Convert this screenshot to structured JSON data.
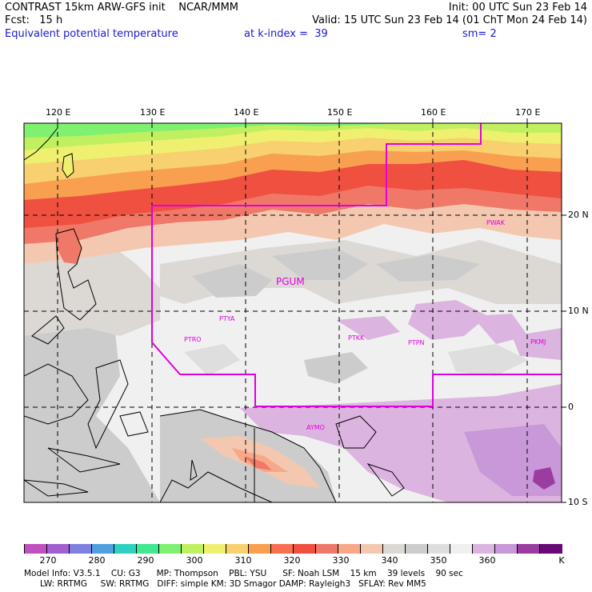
{
  "header": {
    "line1_left": "CONTRAST 15km ARW-GFS init    NCAR/MMM",
    "line1_right": "Init: 00 UTC Sun 23 Feb 14",
    "line2_left": "Fcst:   15 h",
    "line2_right": "Valid: 15 UTC Sun 23 Feb 14 (01 ChT Mon 24 Feb 14)",
    "line3_left": "Equivalent potential temperature",
    "line3_mid": "at k-index =  39",
    "line3_right": "sm= 2"
  },
  "map": {
    "lon_ticks": [
      "120 E",
      "130 E",
      "140 E",
      "150 E",
      "160 E",
      "170 E"
    ],
    "lat_ticks": [
      "20 N",
      "10 N",
      "0",
      "10 S"
    ],
    "stations": [
      {
        "id": "PGUM",
        "label": "PGUM"
      },
      {
        "id": "PTYA",
        "label": "PTYA"
      },
      {
        "id": "PTRO",
        "label": "PTRO"
      },
      {
        "id": "PTKK",
        "label": "PTKK"
      },
      {
        "id": "PTPN",
        "label": "PTPN"
      },
      {
        "id": "PKMJ",
        "label": "PKMJ"
      },
      {
        "id": "PWAK",
        "label": "PWAK"
      },
      {
        "id": "AYMO",
        "label": "AYMO"
      }
    ]
  },
  "colorbar": {
    "colors": [
      "#c050c0",
      "#a060d0",
      "#8080e0",
      "#50a0e0",
      "#30d0c0",
      "#40e890",
      "#80f070",
      "#c0f060",
      "#f0f070",
      "#f8d070",
      "#f8a050",
      "#f87050",
      "#f05040",
      "#f07868",
      "#f8a888",
      "#f4c8b0",
      "#dcd8d4",
      "#cccccc",
      "#dedede",
      "#f0f0f0",
      "#dcb4e0",
      "#c898d8",
      "#9a3ca0",
      "#6a0878"
    ],
    "labels": [
      "270",
      "280",
      "290",
      "300",
      "310",
      "320",
      "330",
      "340",
      "350",
      "360",
      "K"
    ]
  },
  "model_info": {
    "line1": "Model Info: V3.5.1    CU: G3      MP: Thompson    PBL: YSU      SF: Noah LSM    15 km    39 levels    90 sec",
    "line2": "      LW: RRTMG     SW: RRTMG   DIFF: simple KM: 3D Smagor DAMP: Rayleigh3   SFLAY: Rev MM5"
  }
}
